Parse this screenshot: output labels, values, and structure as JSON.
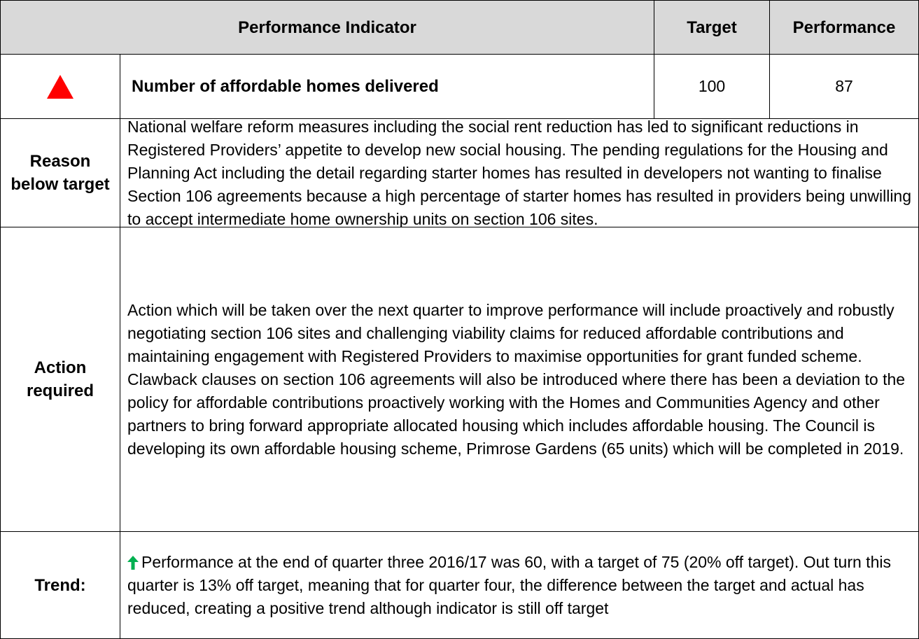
{
  "table": {
    "header": [
      "Performance Indicator",
      "Target",
      "Performance"
    ],
    "indicator": {
      "name": "Number of affordable homes delivered",
      "target": 100,
      "performance": 87
    },
    "rows": [
      {
        "label": "Reason below target",
        "text": "National welfare reform measures including the social rent reduction has led to significant reductions in Registered Providers’ appetite to develop new social housing. The pending regulations for the Housing and Planning Act including the detail regarding starter homes has resulted in developers not wanting to finalise Section 106 agreements because a high percentage of starter homes has resulted in providers being unwilling to accept intermediate home ownership units on section 106 sites."
      },
      {
        "label": "Action required",
        "text": "Action which will be taken over the next quarter to improve performance will include proactively and robustly negotiating section 106 sites and challenging viability claims for reduced affordable contributions and maintaining engagement with Registered Providers to maximise opportunities for grant funded scheme. Clawback clauses on section 106 agreements will also be introduced where there has been a deviation to the policy for affordable contributions proactively working with the Homes and Communities Agency and other partners to bring forward appropriate allocated housing which includes affordable housing. The Council is developing its own affordable housing scheme, Primrose Gardens (65 units) which will be completed in 2019."
      },
      {
        "label": "Trend:",
        "text": "Performance at the end of quarter three 2016/17 was 60, with a target of 75 (20% off target). Out turn this quarter is 13% off target, meaning that for quarter four, the difference between the target and actual has reduced, creating a positive trend although indicator is still off target"
      }
    ]
  }
}
